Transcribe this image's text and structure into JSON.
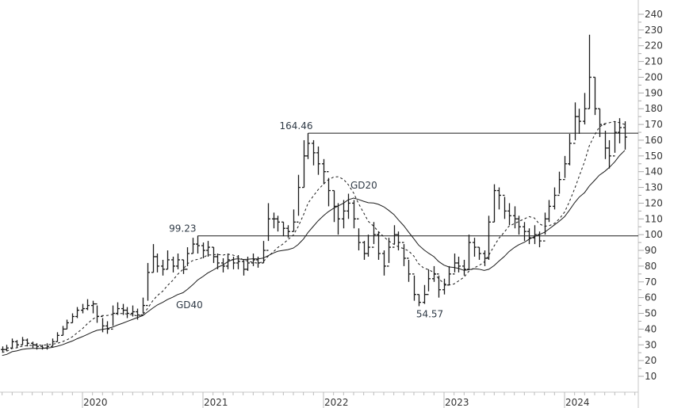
{
  "chart_data": {
    "type": "ohlc",
    "title": "",
    "xlabel": "",
    "ylabel": "",
    "ylim": [
      10,
      240
    ],
    "yticks": [
      10,
      20,
      30,
      40,
      50,
      60,
      70,
      80,
      90,
      100,
      110,
      120,
      130,
      140,
      150,
      160,
      170,
      180,
      190,
      200,
      210,
      220,
      230,
      240
    ],
    "xticks": [
      "2020",
      "2021",
      "2022",
      "2023",
      "2024"
    ],
    "grid": false,
    "bar_fields": [
      "date",
      "high",
      "low",
      "close"
    ],
    "bars": [
      [
        "2019-05-01",
        29,
        25,
        27
      ],
      [
        "2019-05-15",
        30,
        26,
        28
      ],
      [
        "2019-06-01",
        34,
        28,
        32
      ],
      [
        "2019-06-15",
        33,
        28,
        30
      ],
      [
        "2019-07-01",
        35,
        30,
        33
      ],
      [
        "2019-07-15",
        34,
        29,
        31
      ],
      [
        "2019-08-01",
        32,
        28,
        30
      ],
      [
        "2019-08-15",
        31,
        27,
        29
      ],
      [
        "2019-09-01",
        30,
        27,
        28
      ],
      [
        "2019-09-15",
        31,
        27,
        29
      ],
      [
        "2019-10-01",
        34,
        29,
        32
      ],
      [
        "2019-10-15",
        38,
        32,
        36
      ],
      [
        "2019-11-01",
        42,
        36,
        40
      ],
      [
        "2019-11-15",
        46,
        40,
        44
      ],
      [
        "2019-12-01",
        50,
        44,
        48
      ],
      [
        "2019-12-15",
        54,
        47,
        52
      ],
      [
        "2020-01-01",
        56,
        50,
        53
      ],
      [
        "2020-01-15",
        59,
        52,
        55
      ],
      [
        "2020-02-01",
        58,
        50,
        56
      ],
      [
        "2020-02-15",
        55,
        44,
        48
      ],
      [
        "2020-03-01",
        47,
        38,
        42
      ],
      [
        "2020-03-15",
        45,
        37,
        40
      ],
      [
        "2020-04-01",
        55,
        42,
        50
      ],
      [
        "2020-04-15",
        57,
        49,
        53
      ],
      [
        "2020-05-01",
        56,
        49,
        52
      ],
      [
        "2020-05-15",
        54,
        47,
        50
      ],
      [
        "2020-06-01",
        55,
        48,
        51
      ],
      [
        "2020-06-15",
        53,
        46,
        49
      ],
      [
        "2020-07-01",
        60,
        50,
        55
      ],
      [
        "2020-07-15",
        82,
        58,
        76
      ],
      [
        "2020-08-01",
        94,
        76,
        86
      ],
      [
        "2020-08-15",
        88,
        76,
        80
      ],
      [
        "2020-09-01",
        84,
        74,
        78
      ],
      [
        "2020-09-15",
        90,
        78,
        84
      ],
      [
        "2020-10-01",
        86,
        76,
        80
      ],
      [
        "2020-10-15",
        88,
        78,
        84
      ],
      [
        "2020-11-01",
        84,
        75,
        78
      ],
      [
        "2020-11-15",
        92,
        80,
        88
      ],
      [
        "2020-12-01",
        98,
        88,
        94
      ],
      [
        "2020-12-15",
        99.23,
        88,
        93
      ],
      [
        "2021-01-01",
        95,
        85,
        90
      ],
      [
        "2021-01-15",
        96,
        86,
        92
      ],
      [
        "2021-02-01",
        92,
        82,
        86
      ],
      [
        "2021-02-15",
        88,
        78,
        82
      ],
      [
        "2021-03-01",
        85,
        76,
        80
      ],
      [
        "2021-03-15",
        88,
        78,
        84
      ],
      [
        "2021-04-01",
        86,
        78,
        82
      ],
      [
        "2021-04-15",
        87,
        78,
        83
      ],
      [
        "2021-05-01",
        84,
        74,
        78
      ],
      [
        "2021-05-15",
        86,
        77,
        82
      ],
      [
        "2021-06-01",
        88,
        80,
        84
      ],
      [
        "2021-06-15",
        86,
        79,
        82
      ],
      [
        "2021-07-01",
        96,
        82,
        90
      ],
      [
        "2021-07-15",
        120,
        96,
        110
      ],
      [
        "2021-08-01",
        114,
        104,
        110
      ],
      [
        "2021-08-15",
        112,
        102,
        108
      ],
      [
        "2021-09-01",
        108,
        99,
        104
      ],
      [
        "2021-09-15",
        106,
        98,
        102
      ],
      [
        "2021-10-01",
        116,
        102,
        108
      ],
      [
        "2021-10-15",
        138,
        112,
        130
      ],
      [
        "2021-11-01",
        160,
        130,
        150
      ],
      [
        "2021-11-15",
        164.46,
        148,
        158
      ],
      [
        "2021-12-01",
        160,
        144,
        152
      ],
      [
        "2021-12-15",
        156,
        138,
        145
      ],
      [
        "2022-01-01",
        148,
        132,
        140
      ],
      [
        "2022-01-15",
        136,
        118,
        128
      ],
      [
        "2022-02-01",
        128,
        108,
        118
      ],
      [
        "2022-02-15",
        120,
        100,
        110
      ],
      [
        "2022-03-01",
        122,
        104,
        115
      ],
      [
        "2022-03-15",
        126,
        110,
        120
      ],
      [
        "2022-04-01",
        122,
        104,
        110
      ],
      [
        "2022-04-15",
        104,
        90,
        95
      ],
      [
        "2022-05-01",
        96,
        84,
        88
      ],
      [
        "2022-05-15",
        100,
        86,
        92
      ],
      [
        "2022-06-01",
        108,
        94,
        100
      ],
      [
        "2022-06-15",
        102,
        84,
        88
      ],
      [
        "2022-07-01",
        90,
        74,
        80
      ],
      [
        "2022-07-15",
        98,
        82,
        92
      ],
      [
        "2022-08-01",
        106,
        94,
        100
      ],
      [
        "2022-08-15",
        102,
        90,
        95
      ],
      [
        "2022-09-01",
        94,
        80,
        85
      ],
      [
        "2022-09-15",
        84,
        70,
        75
      ],
      [
        "2022-10-01",
        74,
        58,
        62
      ],
      [
        "2022-10-15",
        62,
        54.57,
        57
      ],
      [
        "2022-11-01",
        68,
        56,
        62
      ],
      [
        "2022-11-15",
        78,
        64,
        72
      ],
      [
        "2022-12-01",
        80,
        70,
        75
      ],
      [
        "2022-12-15",
        74,
        60,
        65
      ],
      [
        "2023-01-01",
        72,
        62,
        68
      ],
      [
        "2023-01-15",
        80,
        68,
        75
      ],
      [
        "2023-02-01",
        88,
        76,
        82
      ],
      [
        "2023-02-15",
        86,
        76,
        80
      ],
      [
        "2023-03-01",
        84,
        74,
        78
      ],
      [
        "2023-03-15",
        100,
        78,
        95
      ],
      [
        "2023-04-01",
        98,
        86,
        92
      ],
      [
        "2023-04-15",
        92,
        84,
        88
      ],
      [
        "2023-05-01",
        90,
        80,
        85
      ],
      [
        "2023-05-15",
        112,
        84,
        108
      ],
      [
        "2023-06-01",
        132,
        108,
        128
      ],
      [
        "2023-06-15",
        130,
        116,
        125
      ],
      [
        "2023-07-01",
        124,
        110,
        115
      ],
      [
        "2023-07-15",
        120,
        106,
        112
      ],
      [
        "2023-08-01",
        118,
        104,
        110
      ],
      [
        "2023-08-15",
        112,
        100,
        105
      ],
      [
        "2023-09-01",
        108,
        96,
        102
      ],
      [
        "2023-09-15",
        104,
        94,
        98
      ],
      [
        "2023-10-01",
        106,
        94,
        100
      ],
      [
        "2023-10-15",
        102,
        92,
        96
      ],
      [
        "2023-11-01",
        114,
        100,
        110
      ],
      [
        "2023-11-15",
        122,
        108,
        118
      ],
      [
        "2023-12-01",
        130,
        116,
        125
      ],
      [
        "2023-12-15",
        140,
        126,
        135
      ],
      [
        "2024-01-01",
        150,
        136,
        145
      ],
      [
        "2024-01-15",
        164,
        144,
        158
      ],
      [
        "2024-02-01",
        184,
        160,
        175
      ],
      [
        "2024-02-15",
        180,
        164,
        172
      ],
      [
        "2024-03-01",
        190,
        170,
        180
      ],
      [
        "2024-03-15",
        227,
        180,
        200
      ],
      [
        "2024-04-01",
        200,
        176,
        180
      ],
      [
        "2024-04-15",
        180,
        162,
        170
      ],
      [
        "2024-05-01",
        166,
        148,
        155
      ],
      [
        "2024-05-15",
        160,
        142,
        150
      ],
      [
        "2024-06-01",
        172,
        152,
        165
      ],
      [
        "2024-06-15",
        174,
        158,
        168
      ],
      [
        "2024-07-01",
        172,
        154,
        162
      ]
    ],
    "moving_averages": [
      {
        "name": "GD20",
        "period_weeks": 20,
        "style": "dashed"
      },
      {
        "name": "GD40",
        "period_weeks": 40,
        "style": "solid"
      }
    ],
    "horizontal_lines": [
      {
        "value": 164.46,
        "label": "164.46",
        "from": "2021-11-15"
      },
      {
        "value": 99.23,
        "label": "99.23",
        "from": "2020-12-15"
      }
    ],
    "annotations": [
      {
        "text": "54.57",
        "date": "2022-10-15",
        "value": 54.57
      }
    ],
    "colors": {
      "bars": "#1a1a1a",
      "lines": "#1a1a1a",
      "axis": "#c8c8c8",
      "label": "#2f3a46"
    }
  }
}
